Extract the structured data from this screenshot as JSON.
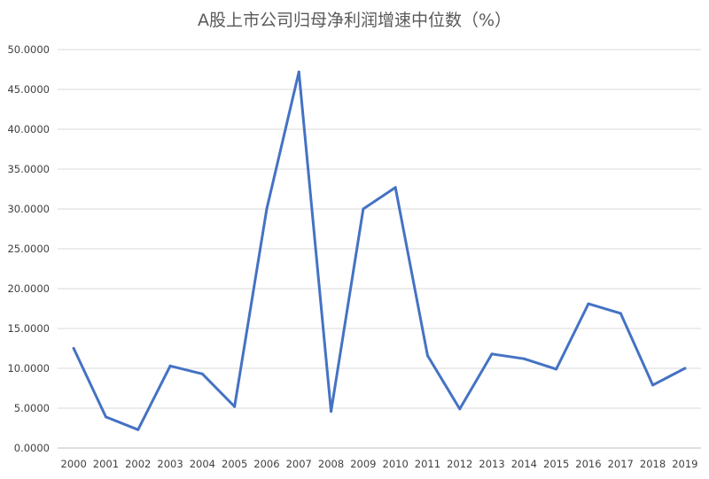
{
  "chart_data": {
    "type": "line",
    "title": "A股上市公司归母净利润增速中位数（%）",
    "xlabel": "",
    "ylabel": "",
    "x": [
      "2000",
      "2001",
      "2002",
      "2003",
      "2004",
      "2005",
      "2006",
      "2007",
      "2008",
      "2009",
      "2010",
      "2011",
      "2012",
      "2013",
      "2014",
      "2015",
      "2016",
      "2017",
      "2018",
      "2019"
    ],
    "series": [
      {
        "color": "#4472c4",
        "values": [
          12.5,
          3.9,
          2.3,
          10.3,
          9.3,
          5.2,
          30.0,
          47.2,
          4.6,
          30.0,
          32.7,
          11.6,
          4.9,
          11.8,
          11.2,
          9.9,
          18.1,
          16.9,
          7.9,
          10.0
        ]
      }
    ],
    "ylim": [
      0,
      50
    ],
    "yticks": [
      "0.0000",
      "5.0000",
      "10.0000",
      "15.0000",
      "20.0000",
      "25.0000",
      "30.0000",
      "35.0000",
      "40.0000",
      "45.0000",
      "50.0000"
    ],
    "grid": true,
    "legend": "none"
  }
}
